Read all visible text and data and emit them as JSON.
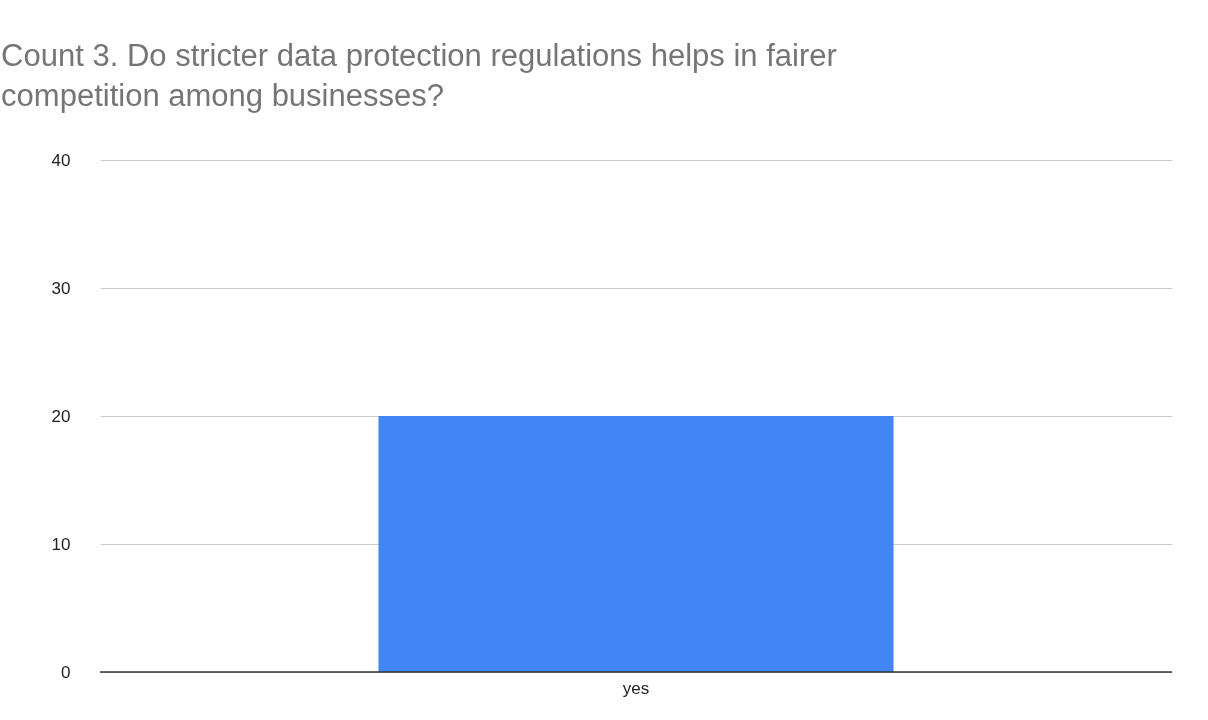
{
  "chart_data": {
    "type": "bar",
    "title": "Count 3. Do stricter data protection regulations helps in fairer competition among businesses?",
    "categories": [
      "yes"
    ],
    "values": [
      20
    ],
    "color": "#4285f4",
    "ylim": [
      0,
      40
    ],
    "yticks": [
      0,
      10,
      20,
      30,
      40
    ],
    "grid": "y"
  }
}
